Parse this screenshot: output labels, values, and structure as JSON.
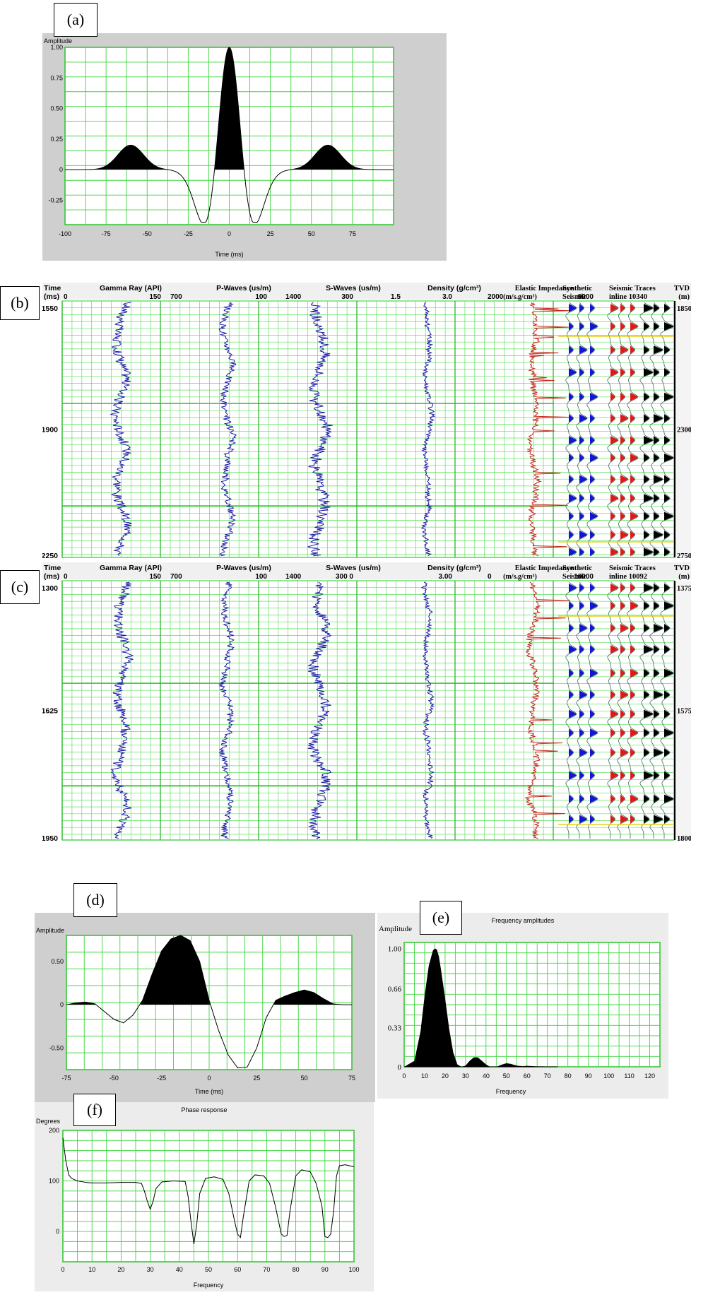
{
  "panel_labels": [
    "(a)",
    "(b)",
    "(c)",
    "(d)",
    "(e)",
    "(f)"
  ],
  "chart_data": [
    {
      "id": "a",
      "type": "area",
      "ylabel": "Amplitude",
      "xlabel": "Time (ms)",
      "xlim": [
        -100,
        100
      ],
      "ylim": [
        -0.45,
        1.0
      ],
      "xticks": [
        "-100",
        "-75",
        "-50",
        "-25",
        "0",
        "25",
        "50",
        "75"
      ],
      "yticks": [
        "1.00",
        "0.75",
        "0.50",
        "0.25",
        "0",
        "-0.25"
      ],
      "grid": true,
      "wavelet": "zero-phase ricker-like, peak 1.0 at 0 ms, side lobes 0.15 at ±60 ms, troughs -0.43 at ±30 ms"
    },
    {
      "id": "b",
      "type": "well-log-panel",
      "time_header": [
        "Time",
        "(ms)"
      ],
      "time_ticks": [
        "1550",
        "1900",
        "2250"
      ],
      "tvd_header": [
        "TVD",
        "(m)"
      ],
      "tvd_ticks": [
        "1850",
        "2300",
        "2750"
      ],
      "tracks": [
        {
          "name": "Gamma Ray (API)",
          "left": "0",
          "right": "150",
          "color": "#1a1aa6"
        },
        {
          "name": "P-Waves (us/m)",
          "left": "700",
          "right": "100",
          "color": "#1a1aa6"
        },
        {
          "name": "S-Waves (us/m)",
          "left": "1400",
          "right": "300",
          "color": "#1a1aa6"
        },
        {
          "name": "Density (g/cm³)",
          "left": "1.5",
          "right": "3.0",
          "color": "#1a1aa6"
        },
        {
          "name": "Elastic Impedance",
          "left": "2000",
          "right": "9000",
          "unit": "(m/s.g/cm³)",
          "color": "#c0281a"
        }
      ],
      "synthetic_label": [
        "Synthetic",
        "Seismic"
      ],
      "seismic_label": [
        "Seismic Traces",
        "inline 10340"
      ]
    },
    {
      "id": "c",
      "type": "well-log-panel",
      "time_header": [
        "Time",
        "(ms)"
      ],
      "time_ticks": [
        "1300",
        "1625",
        "1950"
      ],
      "tvd_header": [
        "TVD",
        "(m)"
      ],
      "tvd_ticks": [
        "1375",
        "1575",
        "1800"
      ],
      "tracks": [
        {
          "name": "Gamma Ray (API)",
          "left": "0",
          "right": "150",
          "color": "#1a1aa6"
        },
        {
          "name": "P-Waves (us/m)",
          "left": "700",
          "right": "100",
          "color": "#1a1aa6"
        },
        {
          "name": "S-Waves (us/m)",
          "left": "1400",
          "right": "300 0",
          "color": "#1a1aa6"
        },
        {
          "name": "Density (g/cm³)",
          "left": "",
          "right": "3.00",
          "color": "#1a1aa6"
        },
        {
          "name": "Elastic Impedance",
          "left": "0",
          "right": "10000",
          "unit": "(m/s.g/cm³)",
          "color": "#c0281a"
        }
      ],
      "synthetic_label": [
        "Synthetic",
        "Seismic"
      ],
      "seismic_label": [
        "Seismic Traces",
        "inline 10092"
      ]
    },
    {
      "id": "d",
      "type": "area",
      "ylabel": "Amplitude",
      "xlabel": "Time (ms)",
      "xlim": [
        -75,
        75
      ],
      "ylim": [
        -0.75,
        0.8
      ],
      "xticks": [
        "-75",
        "-50",
        "-25",
        "0",
        "25",
        "50",
        "75"
      ],
      "yticks": [
        "0.50",
        "0",
        "-0.50"
      ],
      "grid": true
    },
    {
      "id": "e",
      "type": "area",
      "title": "Frequency amplitudes",
      "ylabel": "Amplitude",
      "xlabel": "Frequency",
      "xlim": [
        0,
        125
      ],
      "ylim": [
        0,
        1.05
      ],
      "xticks": [
        "0",
        "10",
        "20",
        "30",
        "40",
        "50",
        "60",
        "70",
        "80",
        "90",
        "100",
        "110",
        "120"
      ],
      "yticks": [
        "1.00",
        "0.66",
        "0.33",
        "0"
      ],
      "grid": true,
      "x": [
        0,
        5,
        8,
        10,
        12,
        14,
        15,
        16,
        17,
        18,
        20,
        22,
        24,
        26,
        28,
        30,
        32,
        34,
        36,
        38,
        40,
        42,
        45,
        48,
        50,
        52,
        55,
        58,
        60,
        65,
        70,
        75
      ],
      "values": [
        0,
        0.05,
        0.3,
        0.6,
        0.85,
        0.98,
        1.0,
        0.99,
        0.93,
        0.82,
        0.58,
        0.32,
        0.12,
        0.02,
        0,
        0.01,
        0.05,
        0.08,
        0.08,
        0.05,
        0.02,
        0.0,
        0.0,
        0.02,
        0.03,
        0.025,
        0.01,
        0.005,
        0.008,
        0.004,
        0.003,
        0
      ]
    },
    {
      "id": "f",
      "type": "line",
      "title": "Phase response",
      "ylabel": "Degrees",
      "xlabel": "Frequency",
      "xlim": [
        0,
        100
      ],
      "ylim": [
        -60,
        200
      ],
      "xticks": [
        "0",
        "10",
        "20",
        "30",
        "40",
        "50",
        "60",
        "70",
        "80",
        "90",
        "100"
      ],
      "yticks": [
        "200",
        "100",
        "0"
      ],
      "grid": true,
      "x": [
        0,
        1,
        2,
        3,
        5,
        8,
        10,
        15,
        20,
        25,
        27,
        28,
        29,
        30,
        31,
        32,
        34,
        38,
        42,
        43,
        44,
        45,
        46,
        47,
        49,
        52,
        55,
        57,
        59,
        60,
        61,
        62,
        64,
        66,
        69,
        71,
        73,
        75,
        76,
        77,
        78,
        80,
        82,
        85,
        87,
        89,
        90,
        91,
        92,
        93,
        94,
        95,
        97,
        100
      ],
      "values": [
        185,
        140,
        112,
        105,
        100,
        97,
        96,
        96,
        97,
        97,
        95,
        80,
        60,
        44,
        60,
        85,
        98,
        100,
        99,
        70,
        20,
        -25,
        15,
        75,
        105,
        108,
        103,
        75,
        20,
        -5,
        -12,
        30,
        100,
        112,
        110,
        95,
        50,
        -5,
        -10,
        -8,
        40,
        110,
        122,
        118,
        95,
        50,
        -10,
        -12,
        -5,
        40,
        110,
        130,
        132,
        128
      ]
    }
  ]
}
